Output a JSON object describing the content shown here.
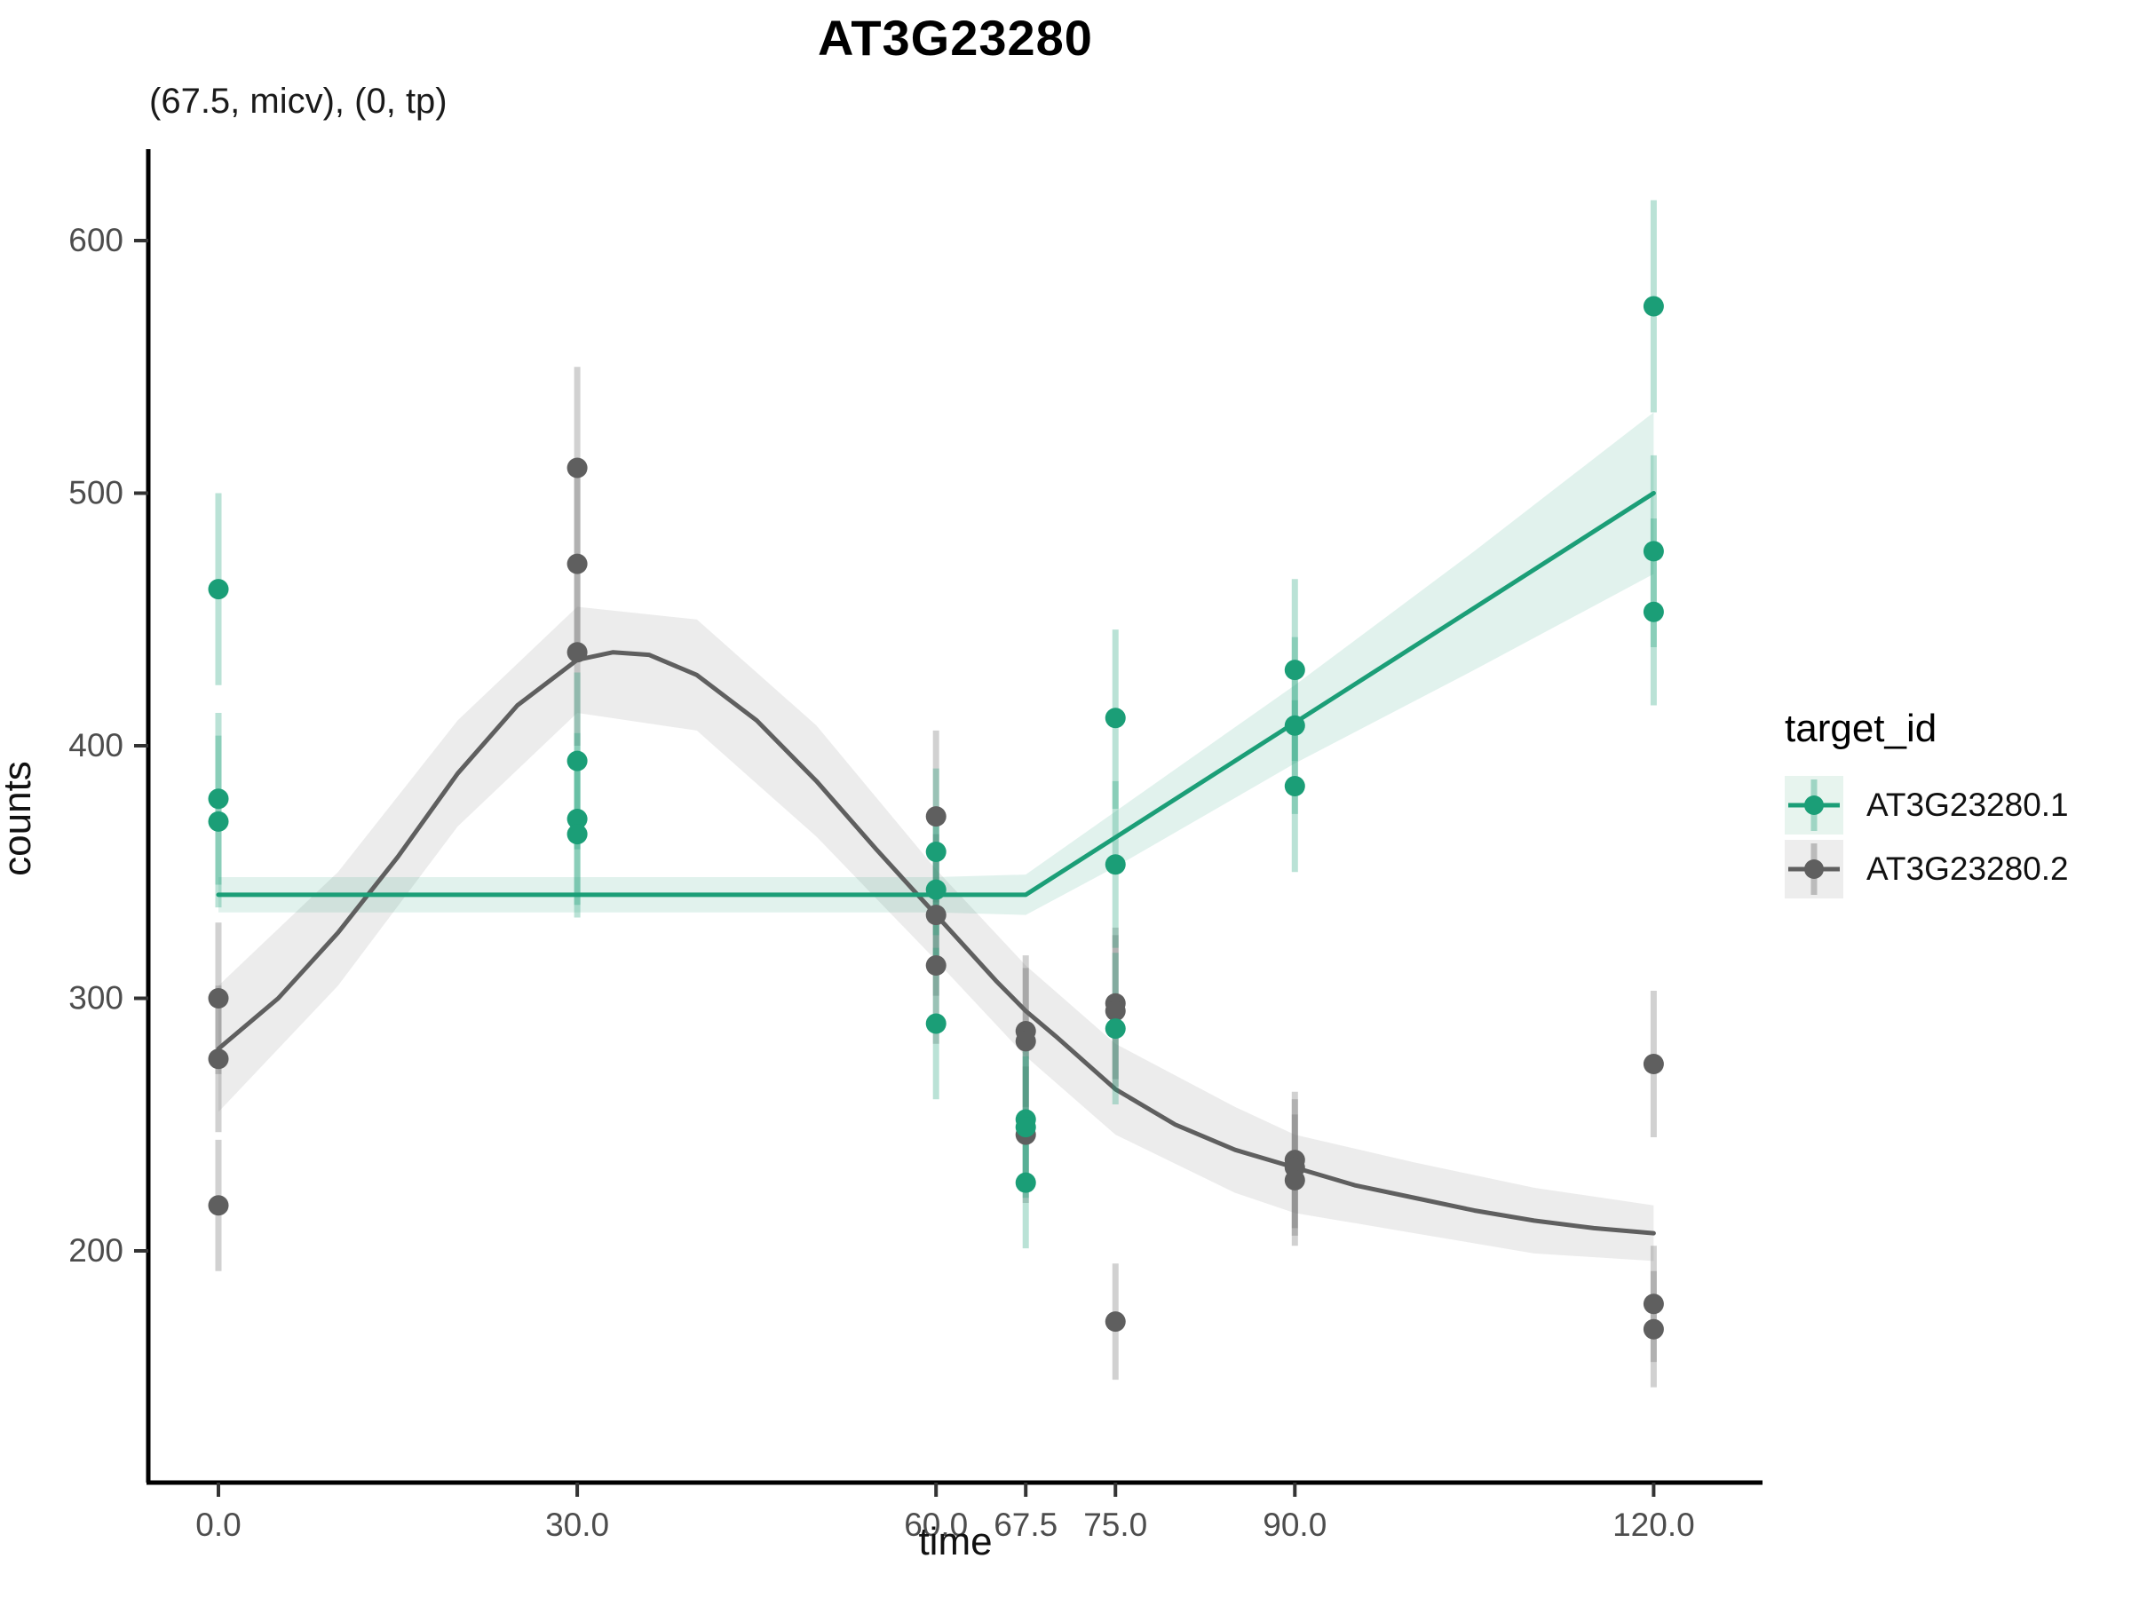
{
  "title": "AT3G23280",
  "subtitle": "(67.5, micv), (0, tp)",
  "legend": {
    "title": "target_id",
    "entries": [
      {
        "label": "AT3G23280.1",
        "color": "#1B9E77",
        "key_bg": "#e7f4ee"
      },
      {
        "label": "AT3G23280.2",
        "color": "#5f5f5f",
        "key_bg": "#ededed"
      }
    ]
  },
  "chart_data": {
    "type": "scatter",
    "title": "AT3G23280",
    "subtitle": "(67.5, micv), (0, tp)",
    "xlabel": "time",
    "ylabel": "counts",
    "legend_position": "right",
    "grid": false,
    "x_tick_labels": [
      "0.0",
      "30.0",
      "60.0",
      "67.5",
      "75.0",
      "90.0",
      "120.0"
    ],
    "x_tick_values": [
      0,
      30,
      60,
      67.5,
      75,
      90,
      120
    ],
    "y_tick_labels": [
      "200",
      "300",
      "400",
      "500",
      "600"
    ],
    "y_tick_values": [
      200,
      300,
      400,
      500,
      600
    ],
    "xlim": [
      -6,
      129
    ],
    "ylim": [
      108,
      655
    ],
    "series": [
      {
        "name": "AT3G23280.2",
        "color": "#5f5f5f",
        "errorbar_color": "rgba(102,102,102,0.30)",
        "ribbon_color": "rgba(120,120,120,0.14)",
        "points": [
          {
            "x": 0,
            "y": 300,
            "lo": 270,
            "hi": 330
          },
          {
            "x": 0,
            "y": 276,
            "lo": 247,
            "hi": 305
          },
          {
            "x": 0,
            "y": 218,
            "lo": 192,
            "hi": 244
          },
          {
            "x": 30,
            "y": 510,
            "lo": 470,
            "hi": 550
          },
          {
            "x": 30,
            "y": 472,
            "lo": 434,
            "hi": 510
          },
          {
            "x": 30,
            "y": 437,
            "lo": 400,
            "hi": 474
          },
          {
            "x": 60,
            "y": 372,
            "lo": 338,
            "hi": 406
          },
          {
            "x": 60,
            "y": 333,
            "lo": 301,
            "hi": 365
          },
          {
            "x": 60,
            "y": 313,
            "lo": 282,
            "hi": 344
          },
          {
            "x": 67.5,
            "y": 287,
            "lo": 257,
            "hi": 317
          },
          {
            "x": 67.5,
            "y": 283,
            "lo": 254,
            "hi": 312
          },
          {
            "x": 67.5,
            "y": 246,
            "lo": 219,
            "hi": 273
          },
          {
            "x": 75,
            "y": 298,
            "lo": 268,
            "hi": 328
          },
          {
            "x": 75,
            "y": 295,
            "lo": 265,
            "hi": 325
          },
          {
            "x": 75,
            "y": 172,
            "lo": 149,
            "hi": 195
          },
          {
            "x": 90,
            "y": 236,
            "lo": 209,
            "hi": 263
          },
          {
            "x": 90,
            "y": 233,
            "lo": 206,
            "hi": 260
          },
          {
            "x": 90,
            "y": 228,
            "lo": 202,
            "hi": 254
          },
          {
            "x": 120,
            "y": 274,
            "lo": 245,
            "hi": 303
          },
          {
            "x": 120,
            "y": 179,
            "lo": 156,
            "hi": 202
          },
          {
            "x": 120,
            "y": 169,
            "lo": 146,
            "hi": 192
          }
        ],
        "trend": [
          [
            0,
            280
          ],
          [
            5,
            300
          ],
          [
            10,
            326
          ],
          [
            15,
            356
          ],
          [
            20,
            389
          ],
          [
            25,
            416
          ],
          [
            30,
            434
          ],
          [
            33,
            437
          ],
          [
            36,
            436
          ],
          [
            40,
            428
          ],
          [
            45,
            410
          ],
          [
            50,
            386
          ],
          [
            55,
            359
          ],
          [
            60,
            333
          ],
          [
            65,
            307
          ],
          [
            67.5,
            295
          ],
          [
            70,
            285
          ],
          [
            75,
            264
          ],
          [
            80,
            250
          ],
          [
            85,
            240
          ],
          [
            90,
            233
          ],
          [
            95,
            226
          ],
          [
            100,
            221
          ],
          [
            105,
            216
          ],
          [
            110,
            212
          ],
          [
            115,
            209
          ],
          [
            120,
            207
          ]
        ],
        "ribbon": [
          [
            0,
            255,
            305
          ],
          [
            10,
            305,
            350
          ],
          [
            20,
            368,
            410
          ],
          [
            30,
            413,
            455
          ],
          [
            40,
            406,
            450
          ],
          [
            50,
            364,
            408
          ],
          [
            60,
            315,
            351
          ],
          [
            67.5,
            277,
            313
          ],
          [
            75,
            246,
            282
          ],
          [
            85,
            223,
            257
          ],
          [
            90,
            215,
            246
          ],
          [
            100,
            207,
            235
          ],
          [
            110,
            199,
            225
          ],
          [
            120,
            196,
            218
          ]
        ]
      },
      {
        "name": "AT3G23280.1",
        "color": "#1B9E77",
        "errorbar_color": "rgba(27,158,119,0.30)",
        "ribbon_color": "rgba(27,158,119,0.13)",
        "points": [
          {
            "x": 0,
            "y": 462,
            "lo": 424,
            "hi": 500
          },
          {
            "x": 0,
            "y": 379,
            "lo": 345,
            "hi": 413
          },
          {
            "x": 0,
            "y": 370,
            "lo": 336,
            "hi": 404
          },
          {
            "x": 30,
            "y": 394,
            "lo": 359,
            "hi": 429
          },
          {
            "x": 30,
            "y": 371,
            "lo": 337,
            "hi": 405
          },
          {
            "x": 30,
            "y": 365,
            "lo": 332,
            "hi": 398
          },
          {
            "x": 60,
            "y": 358,
            "lo": 325,
            "hi": 391
          },
          {
            "x": 60,
            "y": 343,
            "lo": 311,
            "hi": 375
          },
          {
            "x": 60,
            "y": 290,
            "lo": 260,
            "hi": 320
          },
          {
            "x": 67.5,
            "y": 252,
            "lo": 224,
            "hi": 280
          },
          {
            "x": 67.5,
            "y": 249,
            "lo": 221,
            "hi": 277
          },
          {
            "x": 67.5,
            "y": 227,
            "lo": 201,
            "hi": 253
          },
          {
            "x": 75,
            "y": 411,
            "lo": 375,
            "hi": 446
          },
          {
            "x": 75,
            "y": 353,
            "lo": 320,
            "hi": 386
          },
          {
            "x": 75,
            "y": 288,
            "lo": 258,
            "hi": 318
          },
          {
            "x": 90,
            "y": 430,
            "lo": 394,
            "hi": 466
          },
          {
            "x": 90,
            "y": 408,
            "lo": 373,
            "hi": 443
          },
          {
            "x": 90,
            "y": 384,
            "lo": 350,
            "hi": 418
          },
          {
            "x": 120,
            "y": 574,
            "lo": 532,
            "hi": 616
          },
          {
            "x": 120,
            "y": 477,
            "lo": 439,
            "hi": 515
          },
          {
            "x": 120,
            "y": 453,
            "lo": 416,
            "hi": 490
          }
        ],
        "trend": [
          [
            0,
            341
          ],
          [
            67.5,
            341
          ],
          [
            120,
            500
          ]
        ],
        "ribbon": [
          [
            0,
            334,
            348
          ],
          [
            60,
            334,
            348
          ],
          [
            67.5,
            333,
            349
          ],
          [
            75,
            352,
            374
          ],
          [
            90,
            393,
            424
          ],
          [
            105,
            430,
            477
          ],
          [
            120,
            468,
            532
          ]
        ]
      }
    ]
  }
}
